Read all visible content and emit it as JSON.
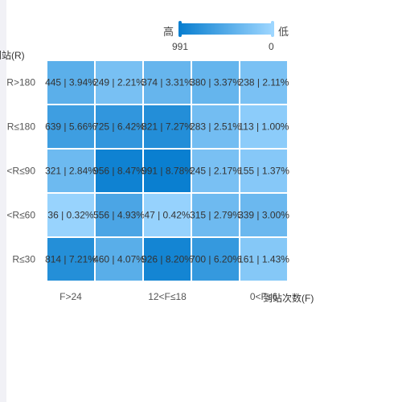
{
  "chart_data": {
    "type": "heatmap",
    "title": "",
    "xlabel": "到站次数(F)",
    "ylabel": "到站(R)",
    "x_categories": [
      "F>24",
      "",
      "12<F≤18",
      "",
      "0<F≤6"
    ],
    "x_tick_labels_shown": [
      "F>24",
      "12<F≤18",
      "0<F≤6"
    ],
    "y_categories": [
      "R>180",
      "R≤180",
      "<R≤90",
      "<R≤60",
      "R≤30"
    ],
    "cells": [
      [
        {
          "value": 445,
          "pct": "3.94%"
        },
        {
          "value": 249,
          "pct": "2.21%"
        },
        {
          "value": 374,
          "pct": "3.31%"
        },
        {
          "value": 380,
          "pct": "3.37%"
        },
        {
          "value": 238,
          "pct": "2.11%"
        }
      ],
      [
        {
          "value": 639,
          "pct": "5.66%"
        },
        {
          "value": 725,
          "pct": "6.42%"
        },
        {
          "value": 821,
          "pct": "7.27%"
        },
        {
          "value": 283,
          "pct": "2.51%"
        },
        {
          "value": 113,
          "pct": "1.00%"
        }
      ],
      [
        {
          "value": 321,
          "pct": "2.84%"
        },
        {
          "value": 956,
          "pct": "8.47%"
        },
        {
          "value": 991,
          "pct": "8.78%"
        },
        {
          "value": 245,
          "pct": "2.17%"
        },
        {
          "value": 155,
          "pct": "1.37%"
        }
      ],
      [
        {
          "value": 36,
          "pct": "0.32%"
        },
        {
          "value": 556,
          "pct": "4.93%"
        },
        {
          "value": 47,
          "pct": "0.42%"
        },
        {
          "value": 315,
          "pct": "2.79%"
        },
        {
          "value": 339,
          "pct": "3.00%"
        }
      ],
      [
        {
          "value": 814,
          "pct": "7.21%"
        },
        {
          "value": 460,
          "pct": "4.07%"
        },
        {
          "value": 926,
          "pct": "8.20%"
        },
        {
          "value": 700,
          "pct": "6.20%"
        },
        {
          "value": 161,
          "pct": "1.43%"
        }
      ]
    ],
    "visual_map": {
      "min": 0,
      "max": 991,
      "high_label": "高",
      "low_label": "低",
      "color_high": "#0a7fd0",
      "color_low": "#9dd6ff"
    },
    "legend_position": "top-right"
  }
}
